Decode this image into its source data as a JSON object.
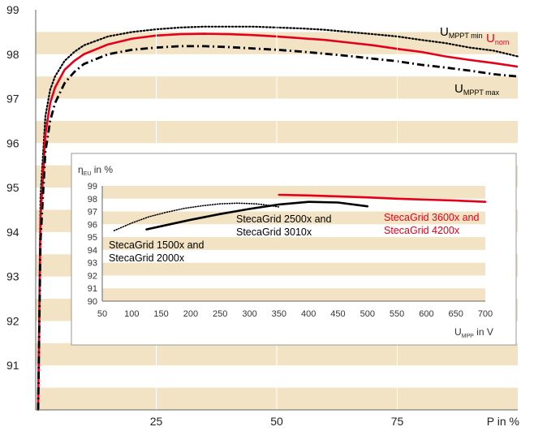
{
  "chart_data": [
    {
      "type": "line",
      "title": "",
      "xlabel": "P in %",
      "ylabel": "",
      "xlim": [
        0,
        100
      ],
      "ylim": [
        90,
        99
      ],
      "x_ticks": [
        "25",
        "50",
        "75"
      ],
      "y_ticks": [
        "91",
        "92",
        "93",
        "94",
        "95",
        "96",
        "97",
        "98",
        "99"
      ],
      "grid": "alternating horizontal bands",
      "colors": {
        "band": "#f2e3c4",
        "nom": "#e3001b",
        "other": "#000000",
        "axis": "#666666"
      },
      "series": [
        {
          "name": "U MPPT min",
          "name_main": "U",
          "name_sub": "MPPT min",
          "style": "dotted",
          "color": "#000000",
          "x": [
            0.5,
            1,
            2,
            3,
            4,
            6,
            8,
            10,
            15,
            20,
            25,
            30,
            35,
            40,
            45,
            50,
            55,
            60,
            65,
            70,
            75,
            80,
            85,
            90,
            95,
            100
          ],
          "y": [
            90.0,
            94.8,
            96.6,
            97.2,
            97.5,
            97.85,
            98.05,
            98.2,
            98.4,
            98.5,
            98.56,
            98.6,
            98.62,
            98.62,
            98.62,
            98.6,
            98.58,
            98.55,
            98.5,
            98.45,
            98.4,
            98.32,
            98.25,
            98.15,
            98.08,
            97.95
          ]
        },
        {
          "name": "U nom",
          "name_main": "U",
          "name_sub": "nom",
          "style": "solid",
          "color": "#e3001b",
          "x": [
            0.5,
            1,
            2,
            3,
            4,
            6,
            8,
            10,
            15,
            20,
            25,
            30,
            35,
            40,
            45,
            50,
            55,
            60,
            65,
            70,
            75,
            80,
            85,
            90,
            95,
            100
          ],
          "y": [
            90.0,
            94.3,
            96.2,
            96.9,
            97.25,
            97.65,
            97.85,
            98.0,
            98.22,
            98.35,
            98.42,
            98.45,
            98.46,
            98.45,
            98.43,
            98.4,
            98.36,
            98.32,
            98.26,
            98.2,
            98.12,
            98.05,
            97.95,
            97.87,
            97.8,
            97.72
          ]
        },
        {
          "name": "U MPPT max",
          "name_main": "U",
          "name_sub": "MPPT max",
          "style": "dashdot",
          "color": "#000000",
          "x": [
            0.5,
            1,
            2,
            3,
            4,
            6,
            8,
            10,
            15,
            20,
            25,
            30,
            35,
            40,
            45,
            50,
            55,
            60,
            65,
            70,
            75,
            80,
            85,
            90,
            95,
            100
          ],
          "y": [
            90.0,
            93.8,
            95.8,
            96.5,
            96.9,
            97.35,
            97.6,
            97.78,
            98.0,
            98.1,
            98.15,
            98.18,
            98.18,
            98.16,
            98.13,
            98.1,
            98.06,
            98.01,
            97.96,
            97.9,
            97.84,
            97.76,
            97.7,
            97.63,
            97.55,
            97.5
          ]
        }
      ]
    },
    {
      "type": "line",
      "title": "",
      "ylabel": "η in %",
      "ylabel_main": "η",
      "ylabel_sub": "EU",
      "ylabel_rest": " in %",
      "xlabel": "U in V",
      "xlabel_main": "U",
      "xlabel_sub": "MPP",
      "xlabel_rest": " in V",
      "xlim": [
        50,
        700
      ],
      "ylim": [
        90,
        99
      ],
      "x_ticks": [
        "50",
        "100",
        "150",
        "200",
        "250",
        "300",
        "350",
        "400",
        "450",
        "500",
        "550",
        "600",
        "650",
        "700"
      ],
      "y_ticks": [
        "90",
        "91",
        "92",
        "93",
        "94",
        "95",
        "96",
        "97",
        "98",
        "99"
      ],
      "grid": "alternating horizontal bands",
      "series": [
        {
          "name": "StecaGrid 1500x and StecaGrid 2000x",
          "label_lines": [
            "StecaGrid 1500x and",
            "StecaGrid 2000x"
          ],
          "style": "dotted",
          "color": "#000000",
          "x": [
            70,
            100,
            130,
            160,
            190,
            220,
            250,
            280,
            310,
            330,
            350
          ],
          "y": [
            95.5,
            96.1,
            96.6,
            96.95,
            97.25,
            97.45,
            97.6,
            97.65,
            97.6,
            97.5,
            97.35
          ]
        },
        {
          "name": "StecaGrid 2500x and StecaGrid 3010x",
          "label_lines": [
            "StecaGrid 2500x and",
            "StecaGrid 3010x"
          ],
          "style": "solid",
          "color": "#000000",
          "x": [
            125,
            150,
            200,
            250,
            300,
            350,
            400,
            450,
            500
          ],
          "y": [
            95.6,
            95.85,
            96.35,
            96.8,
            97.2,
            97.55,
            97.75,
            97.7,
            97.4
          ]
        },
        {
          "name": "StecaGrid 3600x and StecaGrid 4200x",
          "label_lines": [
            "StecaGrid 3600x and",
            "StecaGrid 4200x"
          ],
          "style": "solid",
          "color": "#e3001b",
          "x": [
            350,
            400,
            450,
            500,
            550,
            600,
            650,
            700
          ],
          "y": [
            98.3,
            98.25,
            98.18,
            98.1,
            98.0,
            97.92,
            97.85,
            97.75
          ]
        }
      ]
    }
  ]
}
